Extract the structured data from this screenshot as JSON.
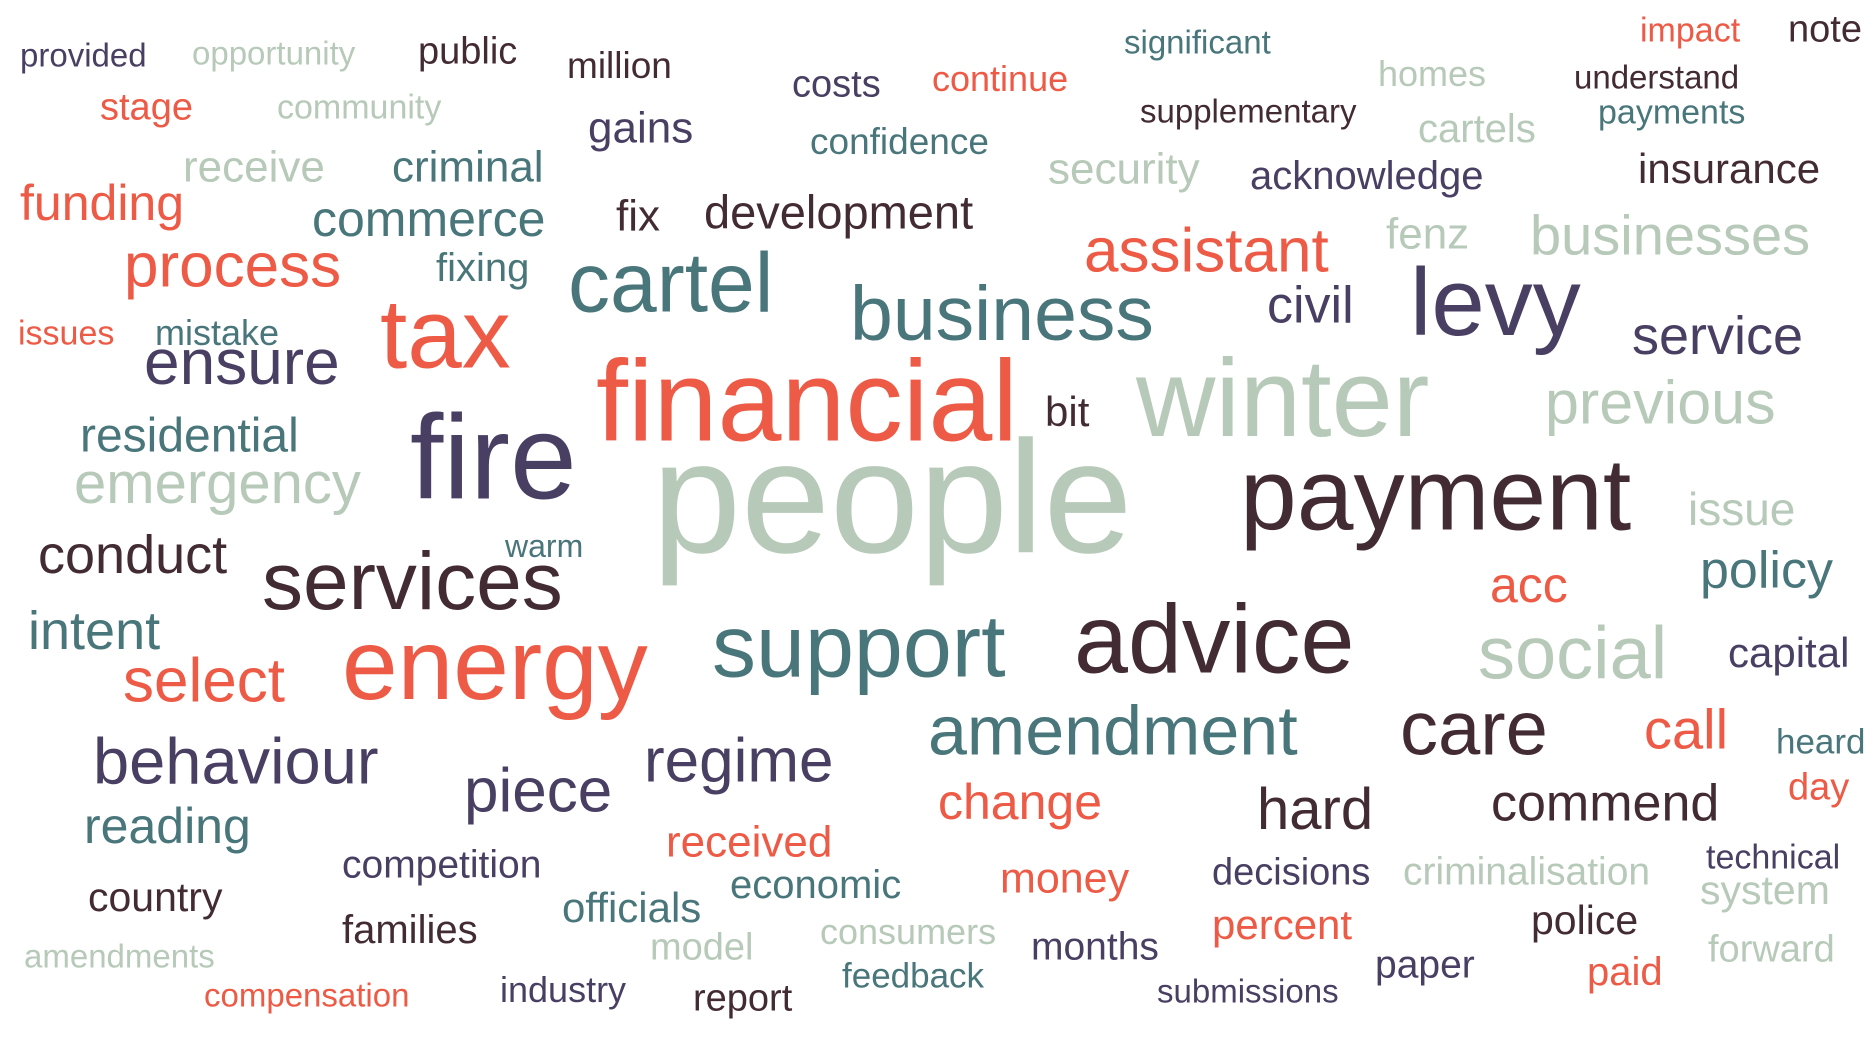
{
  "palette": {
    "red": "#ed5a45",
    "teal": "#49767a",
    "sage": "#b7c9b8",
    "plum": "#493f63",
    "maroon": "#432b33"
  },
  "words": [
    {
      "text": "provided",
      "color": "plum"
    },
    {
      "text": "opportunity",
      "color": "sage"
    },
    {
      "text": "public",
      "color": "maroon"
    },
    {
      "text": "million",
      "color": "maroon"
    },
    {
      "text": "significant",
      "color": "teal"
    },
    {
      "text": "impact",
      "color": "red"
    },
    {
      "text": "note",
      "color": "maroon"
    },
    {
      "text": "costs",
      "color": "plum"
    },
    {
      "text": "continue",
      "color": "red"
    },
    {
      "text": "homes",
      "color": "sage"
    },
    {
      "text": "understand",
      "color": "maroon"
    },
    {
      "text": "stage",
      "color": "red"
    },
    {
      "text": "community",
      "color": "sage"
    },
    {
      "text": "supplementary",
      "color": "maroon"
    },
    {
      "text": "payments",
      "color": "teal"
    },
    {
      "text": "gains",
      "color": "plum"
    },
    {
      "text": "cartels",
      "color": "sage"
    },
    {
      "text": "confidence",
      "color": "teal"
    },
    {
      "text": "receive",
      "color": "sage"
    },
    {
      "text": "criminal",
      "color": "teal"
    },
    {
      "text": "security",
      "color": "sage"
    },
    {
      "text": "acknowledge",
      "color": "plum"
    },
    {
      "text": "insurance",
      "color": "maroon"
    },
    {
      "text": "funding",
      "color": "red"
    },
    {
      "text": "fix",
      "color": "maroon"
    },
    {
      "text": "development",
      "color": "maroon"
    },
    {
      "text": "commerce",
      "color": "teal"
    },
    {
      "text": "fenz",
      "color": "sage"
    },
    {
      "text": "businesses",
      "color": "sage"
    },
    {
      "text": "assistant",
      "color": "red"
    },
    {
      "text": "fixing",
      "color": "teal"
    },
    {
      "text": "process",
      "color": "red"
    },
    {
      "text": "cartel",
      "color": "teal"
    },
    {
      "text": "civil",
      "color": "plum"
    },
    {
      "text": "levy",
      "color": "plum"
    },
    {
      "text": "business",
      "color": "teal"
    },
    {
      "text": "issues",
      "color": "red"
    },
    {
      "text": "mistake",
      "color": "teal"
    },
    {
      "text": "tax",
      "color": "red"
    },
    {
      "text": "service",
      "color": "plum"
    },
    {
      "text": "ensure",
      "color": "plum"
    },
    {
      "text": "financial",
      "color": "red"
    },
    {
      "text": "bit",
      "color": "maroon"
    },
    {
      "text": "winter",
      "color": "sage"
    },
    {
      "text": "previous",
      "color": "sage"
    },
    {
      "text": "residential",
      "color": "teal"
    },
    {
      "text": "fire",
      "color": "plum"
    },
    {
      "text": "emergency",
      "color": "sage"
    },
    {
      "text": "people",
      "color": "sage"
    },
    {
      "text": "payment",
      "color": "maroon"
    },
    {
      "text": "issue",
      "color": "sage"
    },
    {
      "text": "warm",
      "color": "teal"
    },
    {
      "text": "conduct",
      "color": "maroon"
    },
    {
      "text": "policy",
      "color": "teal"
    },
    {
      "text": "services",
      "color": "maroon"
    },
    {
      "text": "acc",
      "color": "red"
    },
    {
      "text": "intent",
      "color": "teal"
    },
    {
      "text": "advice",
      "color": "maroon"
    },
    {
      "text": "capital",
      "color": "plum"
    },
    {
      "text": "support",
      "color": "teal"
    },
    {
      "text": "social",
      "color": "sage"
    },
    {
      "text": "select",
      "color": "red"
    },
    {
      "text": "energy",
      "color": "red"
    },
    {
      "text": "call",
      "color": "red"
    },
    {
      "text": "heard",
      "color": "teal"
    },
    {
      "text": "amendment",
      "color": "teal"
    },
    {
      "text": "care",
      "color": "maroon"
    },
    {
      "text": "behaviour",
      "color": "plum"
    },
    {
      "text": "regime",
      "color": "plum"
    },
    {
      "text": "day",
      "color": "red"
    },
    {
      "text": "piece",
      "color": "plum"
    },
    {
      "text": "change",
      "color": "red"
    },
    {
      "text": "hard",
      "color": "maroon"
    },
    {
      "text": "commend",
      "color": "maroon"
    },
    {
      "text": "reading",
      "color": "teal"
    },
    {
      "text": "received",
      "color": "red"
    },
    {
      "text": "technical",
      "color": "plum"
    },
    {
      "text": "competition",
      "color": "plum"
    },
    {
      "text": "decisions",
      "color": "plum"
    },
    {
      "text": "criminalisation",
      "color": "sage"
    },
    {
      "text": "economic",
      "color": "teal"
    },
    {
      "text": "money",
      "color": "red"
    },
    {
      "text": "system",
      "color": "sage"
    },
    {
      "text": "country",
      "color": "maroon"
    },
    {
      "text": "officials",
      "color": "teal"
    },
    {
      "text": "police",
      "color": "maroon"
    },
    {
      "text": "families",
      "color": "maroon"
    },
    {
      "text": "consumers",
      "color": "sage"
    },
    {
      "text": "percent",
      "color": "red"
    },
    {
      "text": "model",
      "color": "sage"
    },
    {
      "text": "months",
      "color": "plum"
    },
    {
      "text": "forward",
      "color": "sage"
    },
    {
      "text": "amendments",
      "color": "sage"
    },
    {
      "text": "paper",
      "color": "plum"
    },
    {
      "text": "feedback",
      "color": "teal"
    },
    {
      "text": "paid",
      "color": "red"
    },
    {
      "text": "industry",
      "color": "plum"
    },
    {
      "text": "submissions",
      "color": "plum"
    },
    {
      "text": "compensation",
      "color": "red"
    },
    {
      "text": "report",
      "color": "maroon"
    }
  ]
}
